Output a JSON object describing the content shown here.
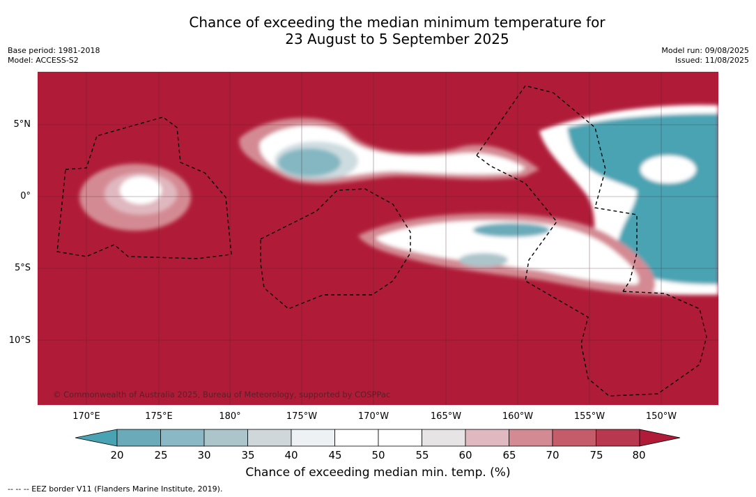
{
  "header": {
    "title_line1": "Chance of exceeding the median minimum temperature for",
    "title_line2": "23 August to 5 September 2025",
    "base_period": "Base period: 1981-2018",
    "model": "Model: ACCESS-S2",
    "model_run": "Model run: 09/08/2025",
    "issued": "Issued: 11/08/2025"
  },
  "map": {
    "background_color": "#b01c38",
    "copyright": "© Commonwealth of Australia 2025, Bureau of Meteorology, supported by COSPPac",
    "y_labels": [
      "5°N",
      "0°",
      "5°S",
      "10°S"
    ],
    "x_labels": [
      "170°E",
      "175°E",
      "180°",
      "175°W",
      "170°W",
      "165°W",
      "160°W",
      "155°W",
      "150°W"
    ]
  },
  "colorbar": {
    "title": "Chance of exceeding median min. temp. (%)",
    "ticks": [
      "20",
      "25",
      "30",
      "35",
      "40",
      "45",
      "50",
      "55",
      "60",
      "65",
      "70",
      "75",
      "80"
    ],
    "colors": [
      "#4aa3b2",
      "#6aaab9",
      "#8ab9c5",
      "#abc5cb",
      "#cfd7da",
      "#eef1f3",
      "#ffffff",
      "#ffffff",
      "#e6e4e5",
      "#e0b8bf",
      "#d48a93",
      "#c55c6a",
      "#b8394f",
      "#b01c38"
    ]
  },
  "footnote": "--  --  -- EEZ border V11 (Flanders Marine Institute, 2019)."
}
